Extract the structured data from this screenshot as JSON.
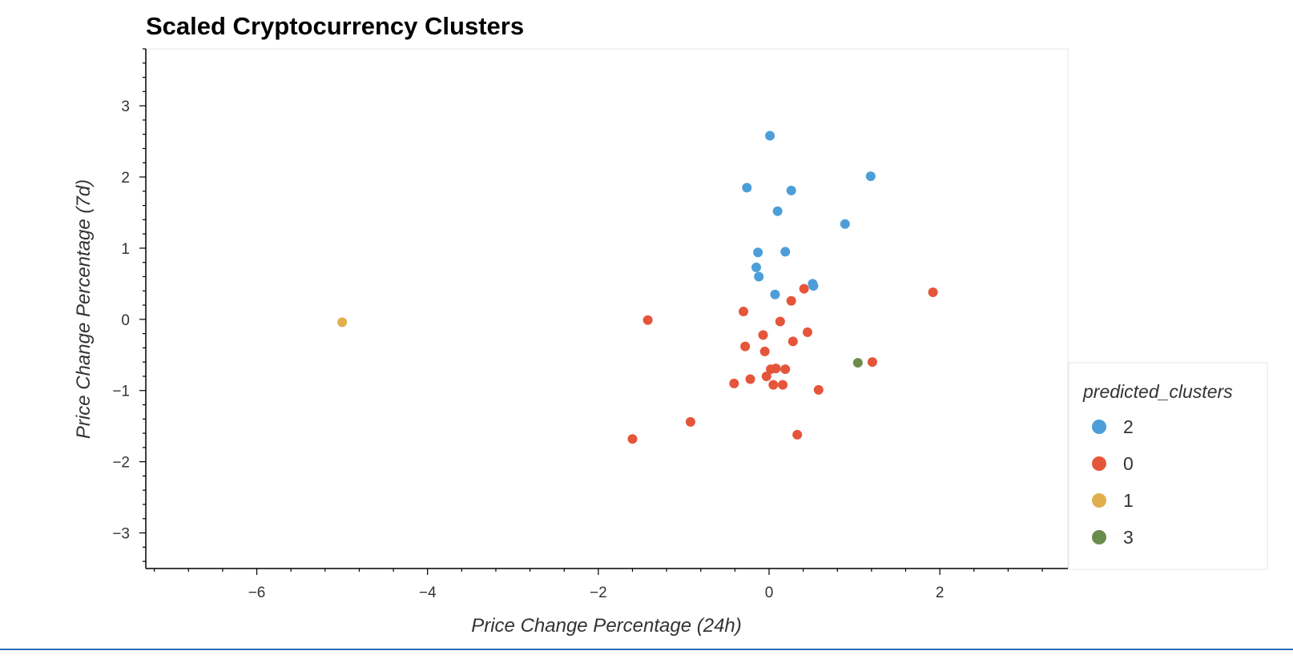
{
  "chart_data": {
    "type": "scatter",
    "title": "Scaled Cryptocurrency Clusters",
    "xlabel": "Price Change Percentage (24h)",
    "ylabel": "Price Change Percentage (7d)",
    "xlim": [
      -7.3,
      3.5
    ],
    "ylim": [
      -3.5,
      3.8
    ],
    "xticks": [
      -6,
      -4,
      -2,
      0,
      2
    ],
    "yticks": [
      -3,
      -2,
      -1,
      0,
      1,
      2,
      3
    ],
    "grid": false,
    "legend": {
      "title": "predicted_clusters",
      "placement": "right"
    },
    "series": [
      {
        "name": "2",
        "color": "#4c9ed9",
        "points": [
          [
            0.01,
            2.58
          ],
          [
            -0.26,
            1.85
          ],
          [
            0.26,
            1.81
          ],
          [
            1.19,
            2.01
          ],
          [
            0.1,
            1.52
          ],
          [
            0.89,
            1.34
          ],
          [
            -0.13,
            0.94
          ],
          [
            0.19,
            0.95
          ],
          [
            -0.15,
            0.73
          ],
          [
            -0.12,
            0.6
          ],
          [
            0.51,
            0.5
          ],
          [
            0.52,
            0.47
          ],
          [
            0.07,
            0.35
          ]
        ]
      },
      {
        "name": "0",
        "color": "#e5553a",
        "points": [
          [
            -1.42,
            -0.01
          ],
          [
            -0.3,
            0.11
          ],
          [
            0.41,
            0.43
          ],
          [
            0.26,
            0.26
          ],
          [
            1.92,
            0.38
          ],
          [
            0.13,
            -0.03
          ],
          [
            0.45,
            -0.18
          ],
          [
            -0.07,
            -0.22
          ],
          [
            0.28,
            -0.31
          ],
          [
            -0.28,
            -0.38
          ],
          [
            -0.05,
            -0.45
          ],
          [
            0.02,
            -0.7
          ],
          [
            0.08,
            -0.69
          ],
          [
            0.19,
            -0.7
          ],
          [
            -0.03,
            -0.8
          ],
          [
            -0.22,
            -0.84
          ],
          [
            -0.41,
            -0.9
          ],
          [
            0.05,
            -0.92
          ],
          [
            0.16,
            -0.92
          ],
          [
            0.58,
            -0.99
          ],
          [
            1.21,
            -0.6
          ],
          [
            -0.92,
            -1.44
          ],
          [
            -1.6,
            -1.68
          ],
          [
            0.33,
            -1.62
          ]
        ]
      },
      {
        "name": "1",
        "color": "#e0ae4c",
        "points": [
          [
            -5.0,
            -0.04
          ]
        ]
      },
      {
        "name": "3",
        "color": "#6a8c4c",
        "points": [
          [
            1.04,
            -0.61
          ]
        ]
      }
    ]
  }
}
